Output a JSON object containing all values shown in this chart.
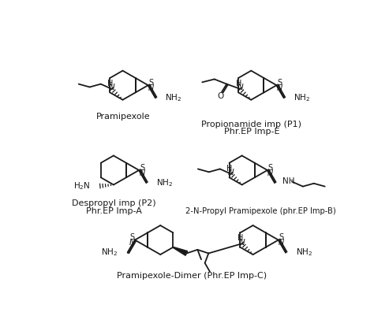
{
  "background": "#ffffff",
  "line_color": "#1a1a1a",
  "line_width": 1.3,
  "labels": {
    "pramipexole": "Pramipexole",
    "p1_line1": "Propionamide imp (P1)",
    "p1_line2": "Phr.EP Imp-E",
    "p2_line1": "Despropyl imp (P2)",
    "p2_line2": "Phr.EP Imp-A",
    "pb": "2-N-Propyl Pramipexole (phr.EP Imp-B)",
    "pc": "Pramipexole-Dimer (Phr.EP Imp-C)"
  }
}
